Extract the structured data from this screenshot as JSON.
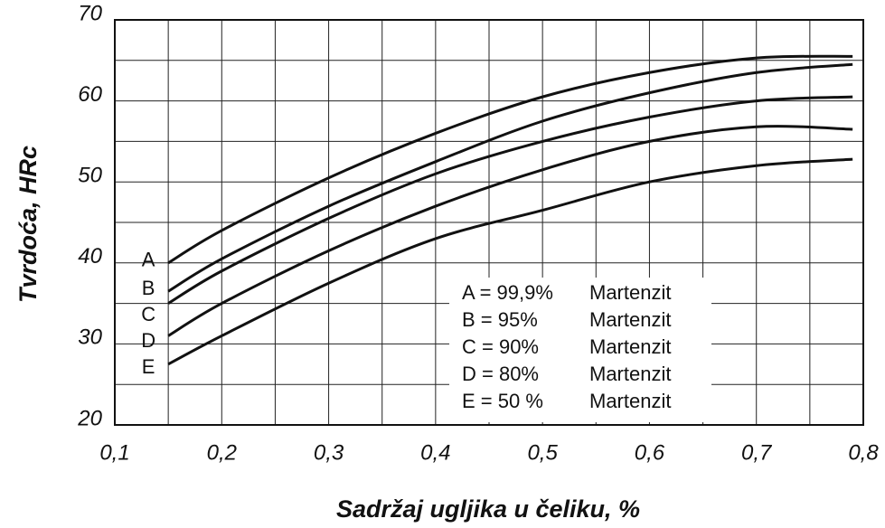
{
  "chart_data": {
    "type": "line",
    "xlabel": "Sadržaj ugljika u čeliku, %",
    "ylabel": "Tvrdoća, HRc",
    "x": [
      0.15,
      0.2,
      0.3,
      0.4,
      0.5,
      0.6,
      0.7,
      0.79
    ],
    "series": [
      {
        "name": "A",
        "legend": "A = 99,9%",
        "legend_suffix": "Martenzit",
        "color": "#111111",
        "values": [
          40,
          44,
          50.5,
          56,
          60.5,
          63.5,
          65.3,
          65.5
        ]
      },
      {
        "name": "B",
        "legend": "B = 95%",
        "legend_suffix": "Martenzit",
        "color": "#111111",
        "values": [
          36.5,
          40.5,
          47,
          52.5,
          57.5,
          61,
          63.5,
          64.5
        ]
      },
      {
        "name": "C",
        "legend": "C = 90%",
        "legend_suffix": "Martenzit",
        "color": "#111111",
        "values": [
          35,
          39,
          45.5,
          51,
          55,
          58,
          60,
          60.5
        ]
      },
      {
        "name": "D",
        "legend": "D = 80%",
        "legend_suffix": "Martenzit",
        "color": "#111111",
        "values": [
          31,
          35,
          41.5,
          47,
          51.5,
          55,
          56.8,
          56.5
        ]
      },
      {
        "name": "E",
        "legend": "E = 50 %",
        "legend_suffix": "Martenzit",
        "color": "#111111",
        "values": [
          27.5,
          31,
          37.5,
          43,
          46.5,
          50,
          52,
          52.8
        ]
      }
    ],
    "xlim": [
      0.1,
      0.8
    ],
    "xticks": [
      {
        "value": 0.1,
        "label": "0,1"
      },
      {
        "value": 0.2,
        "label": "0,2"
      },
      {
        "value": 0.3,
        "label": "0,3"
      },
      {
        "value": 0.4,
        "label": "0,4"
      },
      {
        "value": 0.5,
        "label": "0,5"
      },
      {
        "value": 0.6,
        "label": "0,6"
      },
      {
        "value": 0.7,
        "label": "0,7"
      },
      {
        "value": 0.8,
        "label": "0,8"
      }
    ],
    "x_minor_ticks": [
      0.15,
      0.25,
      0.35,
      0.45,
      0.55,
      0.65,
      0.75
    ],
    "ylim": [
      20,
      70
    ],
    "yticks": [
      20,
      30,
      40,
      50,
      60,
      70
    ],
    "y_minor_ticks": [
      25,
      35,
      45,
      55,
      65
    ],
    "grid": true
  }
}
